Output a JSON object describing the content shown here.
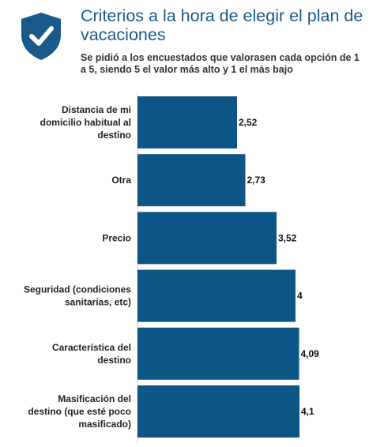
{
  "title": "Criterios a la hora de elegir el plan de vacaciones",
  "subtitle": "Se pidió a los encuestados que valorasen cada opción de 1 a 5, siendo 5 el valor más alto y 1 el más bajo",
  "icon": "shield-check-icon",
  "colors": {
    "bar": "#0d5585",
    "title": "#1a5a8a",
    "text": "#222222",
    "icon": "#1a5a8a"
  },
  "chart_data": {
    "type": "bar",
    "orientation": "horizontal",
    "categories": [
      "Distancia de mi domicilio habitual al destino",
      "Otra",
      "Precio",
      "Seguridad (condiciones sanitarías, etc)",
      "Característica del destino",
      "Masificación del destino (que esté poco masificado)"
    ],
    "category_lines": [
      [
        "Distancia de mi",
        "domicilio habitual al",
        "destino"
      ],
      [
        "Otra"
      ],
      [
        "Precio"
      ],
      [
        "Seguridad (condiciones",
        "sanitarías, etc)"
      ],
      [
        "Característica del",
        "destino"
      ],
      [
        "Masificación del",
        "destino (que esté poco",
        "masificado)"
      ]
    ],
    "values": [
      2.52,
      2.73,
      3.52,
      4,
      4.09,
      4.1
    ],
    "value_labels": [
      "2,52",
      "2,73",
      "3,52",
      "4",
      "4,09",
      "4,1"
    ],
    "xlim": [
      0,
      5
    ],
    "grid": false,
    "legend": "none"
  }
}
